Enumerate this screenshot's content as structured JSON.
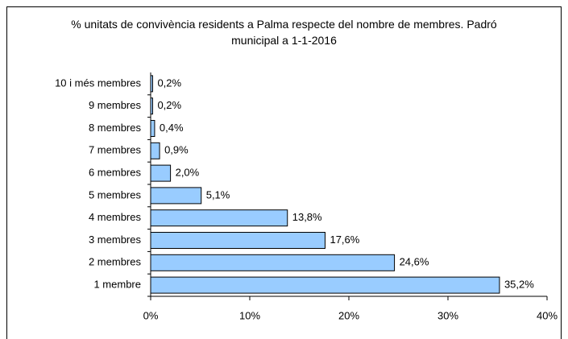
{
  "chart_data": {
    "type": "bar",
    "orientation": "horizontal",
    "title": "% unitats de convivència residents a Palma respecte del nombre de membres. Padró municipal a 1-1-2016",
    "categories": [
      "1 membre",
      "2 membres",
      "3 membres",
      "4 membres",
      "5 membres",
      "6 membres",
      "7 membres",
      "8 membres",
      "9 membres",
      "10 i més membres"
    ],
    "values": [
      35.2,
      24.6,
      17.6,
      13.8,
      5.1,
      2.0,
      0.9,
      0.4,
      0.2,
      0.2
    ],
    "value_labels": [
      "35,2%",
      "24,6%",
      "17,6%",
      "13,8%",
      "5,1%",
      "2,0%",
      "0,9%",
      "0,4%",
      "0,2%",
      "0,2%"
    ],
    "color": "#99ccff",
    "xlim": [
      0,
      40
    ],
    "xticks": [
      {
        "value": 0,
        "label": "0%"
      },
      {
        "value": 10,
        "label": "10%"
      },
      {
        "value": 20,
        "label": "20%"
      },
      {
        "value": 30,
        "label": "30%"
      },
      {
        "value": 40,
        "label": "40%"
      }
    ],
    "grid": false
  }
}
